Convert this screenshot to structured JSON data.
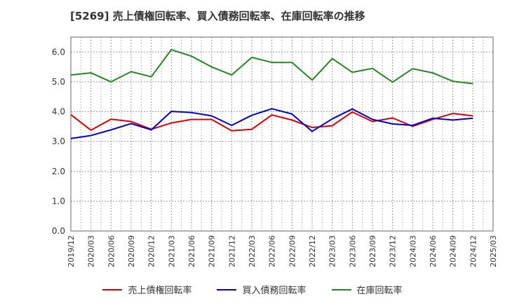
{
  "chart_data": {
    "type": "line",
    "title": "[5269]  売上債権回転率、買入債務回転率、在庫回転率の推移",
    "x": [
      "2019/12",
      "2020/03",
      "2020/06",
      "2020/09",
      "2020/12",
      "2021/03",
      "2021/06",
      "2021/09",
      "2021/12",
      "2022/03",
      "2022/06",
      "2022/09",
      "2022/12",
      "2023/03",
      "2023/06",
      "2023/09",
      "2023/12",
      "2024/03",
      "2024/06",
      "2024/09",
      "2024/12",
      "2025/03"
    ],
    "ylim": [
      0,
      6.5
    ],
    "yticks": [
      0.0,
      1.0,
      2.0,
      3.0,
      4.0,
      5.0,
      6.0
    ],
    "ytick_labels": [
      "0.0",
      "1.0",
      "2.0",
      "3.0",
      "4.0",
      "5.0",
      "6.0"
    ],
    "grid": true,
    "legend_position": "bottom",
    "series": [
      {
        "name": "売上債権回転率",
        "color": "#dd0000",
        "values": [
          3.9,
          3.38,
          3.75,
          3.67,
          3.41,
          3.62,
          3.74,
          3.74,
          3.36,
          3.41,
          3.89,
          3.72,
          3.47,
          3.53,
          3.99,
          3.67,
          3.79,
          3.51,
          3.74,
          3.94,
          3.86,
          null
        ]
      },
      {
        "name": "買入債務回転率",
        "color": "#0000cc",
        "values": [
          3.1,
          3.2,
          3.39,
          3.6,
          3.39,
          4.01,
          3.97,
          3.86,
          3.54,
          3.88,
          4.1,
          3.92,
          3.34,
          3.76,
          4.09,
          3.74,
          3.59,
          3.54,
          3.78,
          3.72,
          3.78,
          null
        ]
      },
      {
        "name": "在庫回転率",
        "color": "#228822",
        "values": [
          5.23,
          5.3,
          5.0,
          5.34,
          5.17,
          6.08,
          5.86,
          5.5,
          5.23,
          5.82,
          5.65,
          5.65,
          5.06,
          5.78,
          5.32,
          5.45,
          4.99,
          5.44,
          5.3,
          5.02,
          4.94,
          null
        ]
      }
    ]
  }
}
